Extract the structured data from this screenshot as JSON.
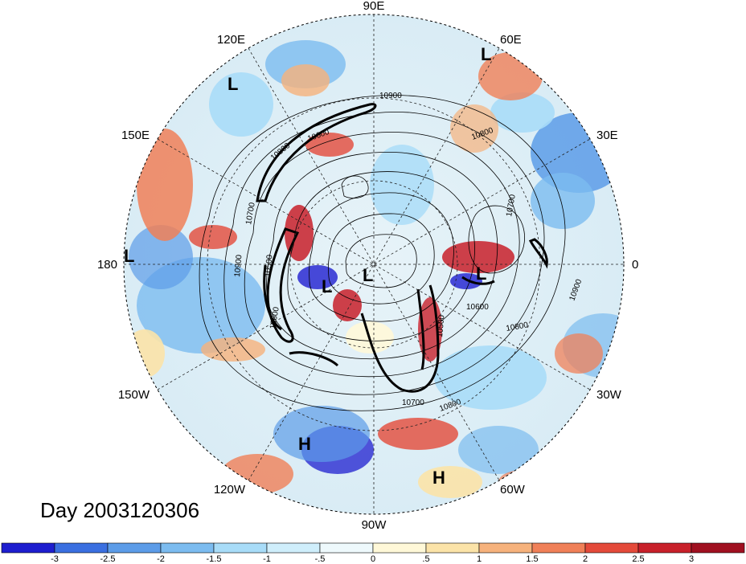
{
  "title": "Day 2003120306",
  "longitude_labels": [
    {
      "text": "90E",
      "name": "lon-label-90e"
    },
    {
      "text": "60E",
      "name": "lon-label-60e"
    },
    {
      "text": "120E",
      "name": "lon-label-120e"
    },
    {
      "text": "30E",
      "name": "lon-label-30e"
    },
    {
      "text": "150E",
      "name": "lon-label-150e"
    },
    {
      "text": "180",
      "name": "lon-label-180"
    },
    {
      "text": "0",
      "name": "lon-label-0"
    },
    {
      "text": "150W",
      "name": "lon-label-150w"
    },
    {
      "text": "30W",
      "name": "lon-label-30w"
    },
    {
      "text": "120W",
      "name": "lon-label-120w"
    },
    {
      "text": "60W",
      "name": "lon-label-60w"
    },
    {
      "text": "90W",
      "name": "lon-label-90w"
    }
  ],
  "pressure_centers": [
    {
      "text": "L",
      "type": "low"
    },
    {
      "text": "L",
      "type": "low"
    },
    {
      "text": "L",
      "type": "low"
    },
    {
      "text": "L",
      "type": "low"
    },
    {
      "text": "L",
      "type": "low"
    },
    {
      "text": "L",
      "type": "low"
    },
    {
      "text": "H",
      "type": "high"
    },
    {
      "text": "H",
      "type": "high"
    }
  ],
  "contour_labels": [
    "10900",
    "10600",
    "10800",
    "10700",
    "10800",
    "10900",
    "10500",
    "10600",
    "10500",
    "10600",
    "10800",
    "10900",
    "10700",
    "10800",
    "10700"
  ],
  "colorbar": {
    "ticks": [
      "-3",
      "-2.5",
      "-2",
      "-1.5",
      "-1",
      "-.5",
      "0",
      ".5",
      "1",
      "1.5",
      "2",
      "2.5",
      "3"
    ],
    "colors": [
      "#1e1ecf",
      "#3a6fe0",
      "#5c9ce8",
      "#7cbcf0",
      "#a8dcf8",
      "#cfeefb",
      "#eef9fc",
      "#fff8d8",
      "#fbe3a8",
      "#f6b27c",
      "#f08058",
      "#e44a3a",
      "#c8202a",
      "#a01020"
    ]
  }
}
